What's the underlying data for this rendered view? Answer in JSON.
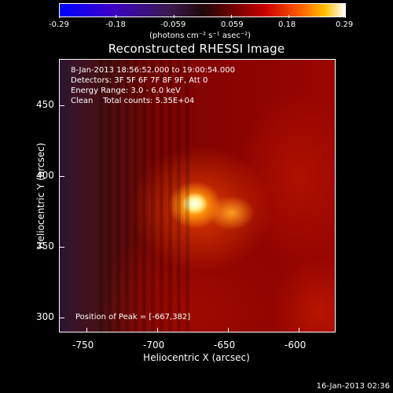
{
  "colorbar": {
    "ticks": [
      "-0.29",
      "-0.18",
      "-0.059",
      "0.059",
      "0.18",
      "0.29"
    ],
    "units": "(photons cm⁻² s⁻¹ asec⁻²)"
  },
  "title": "Reconstructed RHESSI Image",
  "info": {
    "time": "8-Jan-2013 18:56:52.000 to 19:00:54.000",
    "detectors": "Detectors: 3F 5F 6F 7F 8F 9F, Att 0",
    "energy": "Energy Range: 3.0 - 6.0 keV",
    "clean": "Clean    Total counts: 5.35E+04",
    "peak": "Position of Peak = [-667,382]"
  },
  "axes": {
    "x_label": "Heliocentric X (arcsec)",
    "y_label": "Heliocentric Y (arcsec)",
    "x_ticks": [
      "-750",
      "-700",
      "-650",
      "-600"
    ],
    "y_ticks": [
      "450",
      "400",
      "350",
      "300"
    ]
  },
  "footer_date": "16-Jan-2013 02:36"
}
